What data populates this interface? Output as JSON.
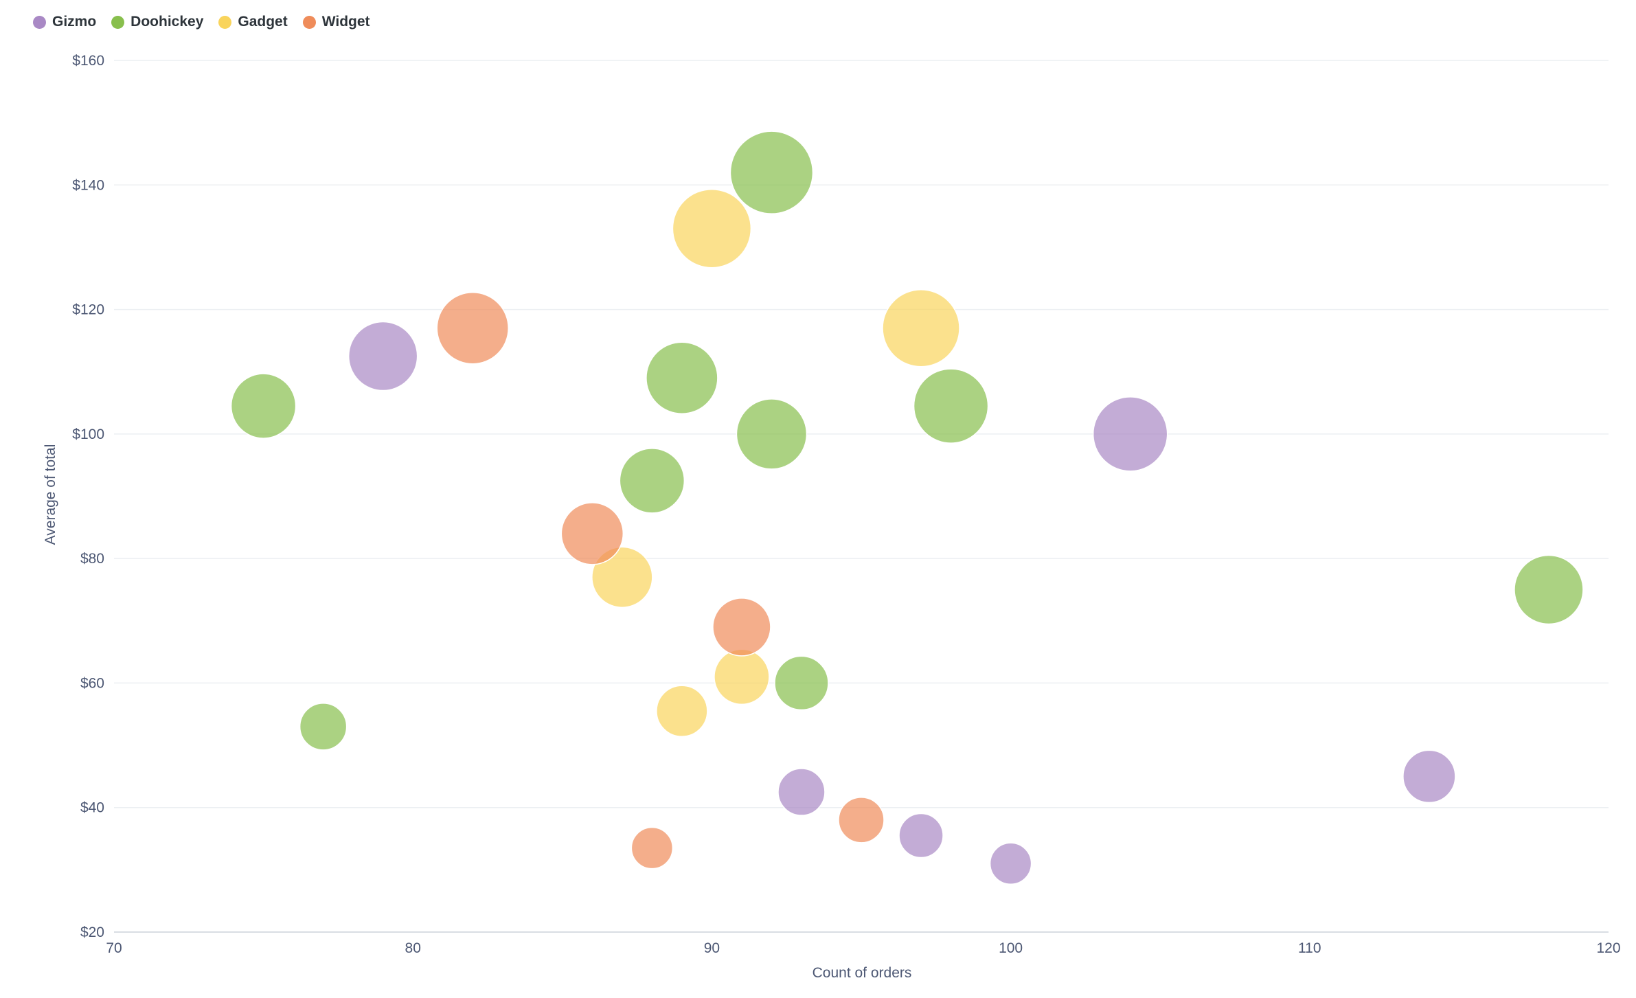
{
  "chart_data": {
    "type": "scatter",
    "bubble": true,
    "title": "",
    "xlabel": "Count of orders",
    "ylabel": "Average of total",
    "xlim": [
      70,
      120
    ],
    "ylim": [
      20,
      160
    ],
    "xticks": [
      70,
      80,
      90,
      100,
      110,
      120
    ],
    "yticks": [
      20,
      40,
      60,
      80,
      100,
      120,
      140,
      160
    ],
    "x_tick_labels": [
      "70",
      "80",
      "90",
      "100",
      "110",
      "120"
    ],
    "y_tick_labels": [
      "$20",
      "$40",
      "$60",
      "$80",
      "$100",
      "$120",
      "$140",
      "$160"
    ],
    "grid": true,
    "legend_position": "top-left",
    "series": [
      {
        "name": "Gizmo",
        "color": "#a989c5",
        "points": [
          {
            "x": 79,
            "y": 112.5,
            "size": 50
          },
          {
            "x": 104,
            "y": 100,
            "size": 54
          },
          {
            "x": 93,
            "y": 42.5,
            "size": 34
          },
          {
            "x": 97,
            "y": 35.5,
            "size": 32
          },
          {
            "x": 100,
            "y": 31,
            "size": 30
          },
          {
            "x": 114,
            "y": 45,
            "size": 38
          }
        ]
      },
      {
        "name": "Doohickey",
        "color": "#88bf4d",
        "points": [
          {
            "x": 75,
            "y": 104.5,
            "size": 47
          },
          {
            "x": 77,
            "y": 53,
            "size": 34
          },
          {
            "x": 88,
            "y": 92.5,
            "size": 47
          },
          {
            "x": 89,
            "y": 109,
            "size": 52
          },
          {
            "x": 92,
            "y": 100,
            "size": 51
          },
          {
            "x": 92,
            "y": 142,
            "size": 60
          },
          {
            "x": 93,
            "y": 60,
            "size": 39
          },
          {
            "x": 98,
            "y": 104.5,
            "size": 54
          },
          {
            "x": 118,
            "y": 75,
            "size": 50
          }
        ]
      },
      {
        "name": "Gadget",
        "color": "#f9d45c",
        "points": [
          {
            "x": 87,
            "y": 77,
            "size": 44
          },
          {
            "x": 89,
            "y": 55.5,
            "size": 37
          },
          {
            "x": 90,
            "y": 133,
            "size": 57
          },
          {
            "x": 91,
            "y": 61,
            "size": 40
          },
          {
            "x": 97,
            "y": 117,
            "size": 56
          }
        ]
      },
      {
        "name": "Widget",
        "color": "#ef8c5a",
        "points": [
          {
            "x": 82,
            "y": 117,
            "size": 52
          },
          {
            "x": 86,
            "y": 84,
            "size": 45
          },
          {
            "x": 88,
            "y": 33.5,
            "size": 30
          },
          {
            "x": 91,
            "y": 69,
            "size": 42
          },
          {
            "x": 95,
            "y": 38,
            "size": 33
          }
        ]
      }
    ]
  }
}
